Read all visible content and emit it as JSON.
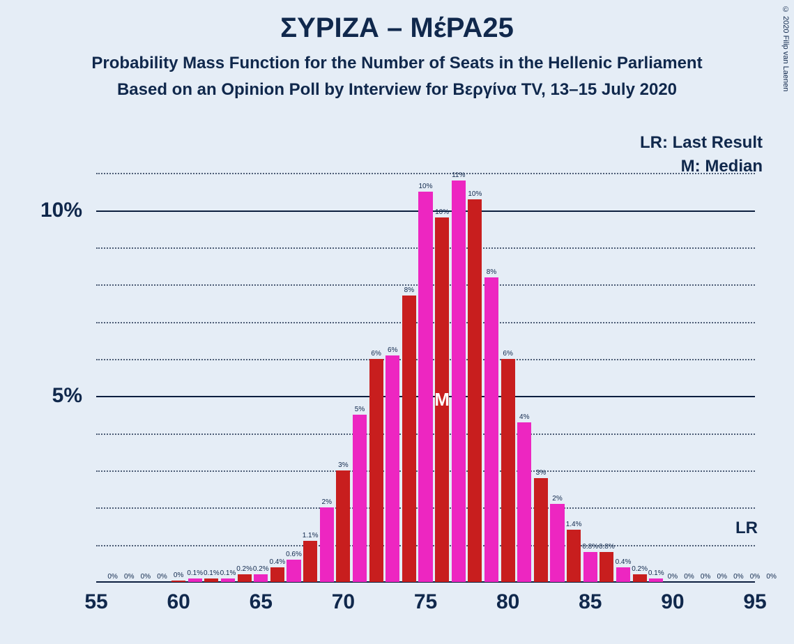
{
  "title": "ΣΥΡΙΖΑ – ΜέΡΑ25",
  "subtitle1": "Probability Mass Function for the Number of Seats in the Hellenic Parliament",
  "subtitle2": "Based on an Opinion Poll by Interview for Βεργίνα TV, 13–15 July 2020",
  "copyright": "© 2020 Filip van Laenen",
  "legend": {
    "lr": "LR: Last Result",
    "m": "M: Median"
  },
  "lr_label": "LR",
  "median_label": "M",
  "chart": {
    "type": "bar",
    "background_color": "#e5edf6",
    "title_color": "#10284c",
    "grid_major_color": "#0c1f3f",
    "grid_minor_color": "#0c1f3f",
    "ylim": [
      0,
      12
    ],
    "ytick_major": [
      5,
      10
    ],
    "ytick_minor": [
      1,
      2,
      3,
      4,
      6,
      7,
      8,
      9,
      11
    ],
    "xlim": [
      55,
      95
    ],
    "xtick_step": 5,
    "xticks": [
      55,
      60,
      65,
      70,
      75,
      80,
      85,
      90,
      95
    ],
    "bar_width": 0.85,
    "colors": {
      "even": "#c81e1e",
      "odd": "#ed26c1"
    },
    "title_fontsize": 40,
    "subtitle_fontsize": 24,
    "tick_fontsize": 30,
    "barlabel_fontsize": 10,
    "median_x": 76,
    "lr_y": 1.45,
    "bars": [
      {
        "x": 56,
        "v": 0,
        "label": "0%"
      },
      {
        "x": 57,
        "v": 0,
        "label": "0%"
      },
      {
        "x": 58,
        "v": 0,
        "label": "0%"
      },
      {
        "x": 59,
        "v": 0,
        "label": "0%"
      },
      {
        "x": 60,
        "v": 0.03,
        "label": "0%"
      },
      {
        "x": 61,
        "v": 0.1,
        "label": "0.1%"
      },
      {
        "x": 62,
        "v": 0.1,
        "label": "0.1%"
      },
      {
        "x": 63,
        "v": 0.1,
        "label": "0.1%"
      },
      {
        "x": 64,
        "v": 0.2,
        "label": "0.2%"
      },
      {
        "x": 65,
        "v": 0.2,
        "label": "0.2%"
      },
      {
        "x": 66,
        "v": 0.4,
        "label": "0.4%"
      },
      {
        "x": 67,
        "v": 0.6,
        "label": "0.6%"
      },
      {
        "x": 68,
        "v": 1.1,
        "label": "1.1%"
      },
      {
        "x": 69,
        "v": 2.0,
        "label": "2%"
      },
      {
        "x": 70,
        "v": 3.0,
        "label": "3%"
      },
      {
        "x": 71,
        "v": 4.5,
        "label": "5%"
      },
      {
        "x": 72,
        "v": 6.0,
        "label": "6%"
      },
      {
        "x": 73,
        "v": 6.1,
        "label": "6%"
      },
      {
        "x": 74,
        "v": 7.7,
        "label": "8%"
      },
      {
        "x": 75,
        "v": 10.5,
        "label": "10%"
      },
      {
        "x": 76,
        "v": 9.8,
        "label": "10%"
      },
      {
        "x": 77,
        "v": 10.8,
        "label": "11%"
      },
      {
        "x": 78,
        "v": 10.3,
        "label": "10%"
      },
      {
        "x": 79,
        "v": 8.2,
        "label": "8%"
      },
      {
        "x": 80,
        "v": 6.0,
        "label": "6%"
      },
      {
        "x": 81,
        "v": 4.3,
        "label": "4%"
      },
      {
        "x": 82,
        "v": 2.8,
        "label": "3%"
      },
      {
        "x": 83,
        "v": 2.1,
        "label": "2%"
      },
      {
        "x": 84,
        "v": 1.4,
        "label": "1.4%"
      },
      {
        "x": 85,
        "v": 0.8,
        "label": "0.8%"
      },
      {
        "x": 86,
        "v": 0.8,
        "label": "0.8%"
      },
      {
        "x": 87,
        "v": 0.4,
        "label": "0.4%"
      },
      {
        "x": 88,
        "v": 0.2,
        "label": "0.2%"
      },
      {
        "x": 89,
        "v": 0.1,
        "label": "0.1%"
      },
      {
        "x": 90,
        "v": 0,
        "label": "0%"
      },
      {
        "x": 91,
        "v": 0,
        "label": "0%"
      },
      {
        "x": 92,
        "v": 0,
        "label": "0%"
      },
      {
        "x": 93,
        "v": 0,
        "label": "0%"
      },
      {
        "x": 94,
        "v": 0,
        "label": "0%"
      },
      {
        "x": 95,
        "v": 0,
        "label": "0%"
      },
      {
        "x": 96,
        "v": 0,
        "label": "0%"
      }
    ]
  }
}
